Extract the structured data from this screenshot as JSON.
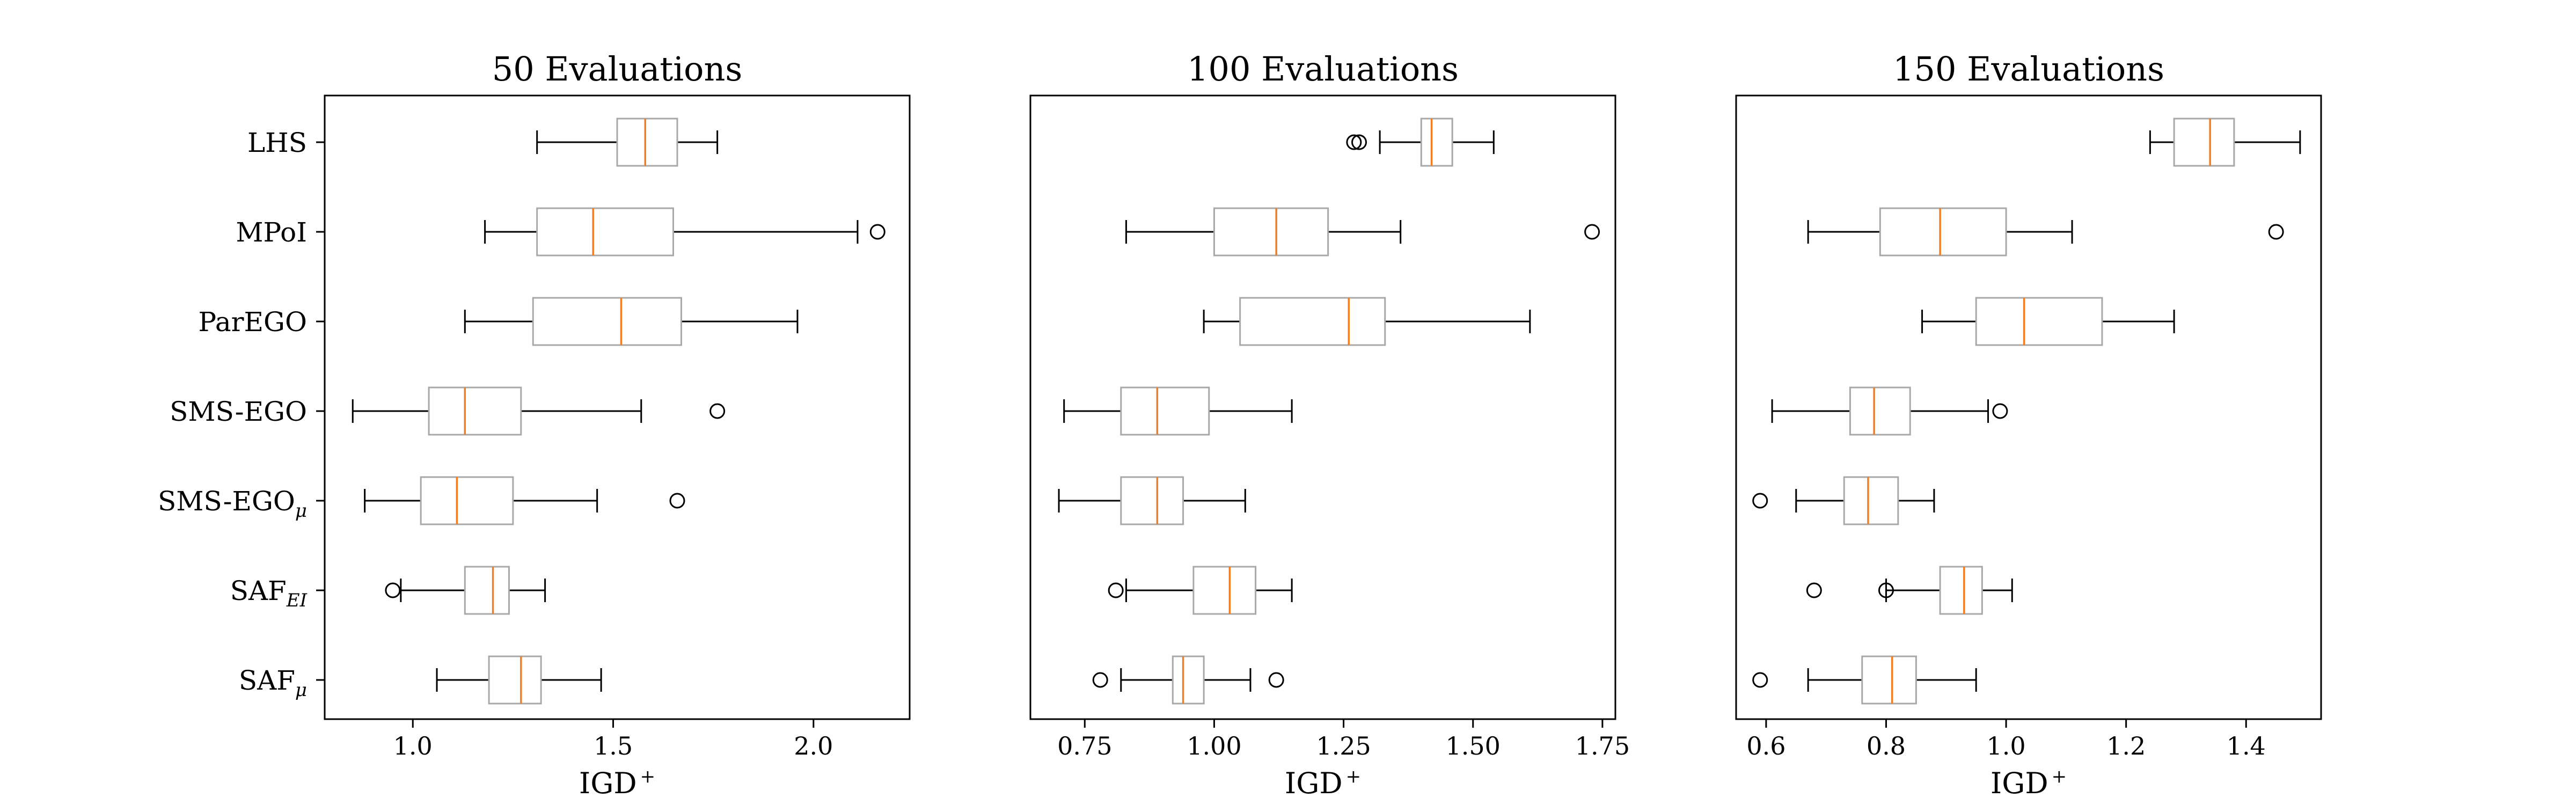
{
  "chart_data": {
    "type": "boxplot",
    "categories": [
      {
        "label": "LHS"
      },
      {
        "label": "MPoI"
      },
      {
        "label": "ParEGO"
      },
      {
        "label": "SMS-EGO"
      },
      {
        "label": "SMS-EGO",
        "sub": "μ"
      },
      {
        "label": "SAF",
        "sub": "EI"
      },
      {
        "label": "SAF",
        "sub": "μ"
      }
    ],
    "colors": {
      "box": "#a8a8a8",
      "median": "#f07f26",
      "whisker": "#000000",
      "frame": "#000000"
    },
    "panels": [
      {
        "title": "50 Evaluations",
        "xlabel": "IGD",
        "xlabel_sup": "+",
        "xlim": [
          0.78,
          2.24
        ],
        "xticks": [
          1.0,
          1.5,
          2.0
        ],
        "xtick_labels": [
          "1.0",
          "1.5",
          "2.0"
        ],
        "boxes": [
          {
            "whislo": 1.31,
            "q1": 1.51,
            "med": 1.58,
            "q3": 1.66,
            "whishi": 1.76,
            "fliers": []
          },
          {
            "whislo": 1.18,
            "q1": 1.31,
            "med": 1.45,
            "q3": 1.65,
            "whishi": 2.11,
            "fliers": [
              2.16
            ]
          },
          {
            "whislo": 1.13,
            "q1": 1.3,
            "med": 1.52,
            "q3": 1.67,
            "whishi": 1.96,
            "fliers": []
          },
          {
            "whislo": 0.85,
            "q1": 1.04,
            "med": 1.13,
            "q3": 1.27,
            "whishi": 1.57,
            "fliers": [
              1.76
            ]
          },
          {
            "whislo": 0.88,
            "q1": 1.02,
            "med": 1.11,
            "q3": 1.25,
            "whishi": 1.46,
            "fliers": [
              1.66
            ]
          },
          {
            "whislo": 0.97,
            "q1": 1.13,
            "med": 1.2,
            "q3": 1.24,
            "whishi": 1.33,
            "fliers": [
              0.95
            ]
          },
          {
            "whislo": 1.06,
            "q1": 1.19,
            "med": 1.27,
            "q3": 1.32,
            "whishi": 1.47,
            "fliers": []
          }
        ]
      },
      {
        "title": "100 Evaluations",
        "xlabel": "IGD",
        "xlabel_sup": "+",
        "xlim": [
          0.645,
          1.775
        ],
        "xticks": [
          0.75,
          1.0,
          1.25,
          1.5,
          1.75
        ],
        "xtick_labels": [
          "0.75",
          "1.00",
          "1.25",
          "1.50",
          "1.75"
        ],
        "boxes": [
          {
            "whislo": 1.32,
            "q1": 1.4,
            "med": 1.42,
            "q3": 1.46,
            "whishi": 1.54,
            "fliers": [
              1.27,
              1.28
            ]
          },
          {
            "whislo": 0.83,
            "q1": 1.0,
            "med": 1.12,
            "q3": 1.22,
            "whishi": 1.36,
            "fliers": [
              1.73
            ]
          },
          {
            "whislo": 0.98,
            "q1": 1.05,
            "med": 1.26,
            "q3": 1.33,
            "whishi": 1.61,
            "fliers": []
          },
          {
            "whislo": 0.71,
            "q1": 0.82,
            "med": 0.89,
            "q3": 0.99,
            "whishi": 1.15,
            "fliers": []
          },
          {
            "whislo": 0.7,
            "q1": 0.82,
            "med": 0.89,
            "q3": 0.94,
            "whishi": 1.06,
            "fliers": []
          },
          {
            "whislo": 0.83,
            "q1": 0.96,
            "med": 1.03,
            "q3": 1.08,
            "whishi": 1.15,
            "fliers": [
              0.81
            ]
          },
          {
            "whislo": 0.82,
            "q1": 0.92,
            "med": 0.94,
            "q3": 0.98,
            "whishi": 1.07,
            "fliers": [
              0.78,
              1.12
            ]
          }
        ]
      },
      {
        "title": "150 Evaluations",
        "xlabel": "IGD",
        "xlabel_sup": "+",
        "xlim": [
          0.55,
          1.525
        ],
        "xticks": [
          0.6,
          0.8,
          1.0,
          1.2,
          1.4
        ],
        "xtick_labels": [
          "0.6",
          "0.8",
          "1.0",
          "1.2",
          "1.4"
        ],
        "boxes": [
          {
            "whislo": 1.24,
            "q1": 1.28,
            "med": 1.34,
            "q3": 1.38,
            "whishi": 1.49,
            "fliers": []
          },
          {
            "whislo": 0.67,
            "q1": 0.79,
            "med": 0.89,
            "q3": 1.0,
            "whishi": 1.11,
            "fliers": [
              1.45
            ]
          },
          {
            "whislo": 0.86,
            "q1": 0.95,
            "med": 1.03,
            "q3": 1.16,
            "whishi": 1.28,
            "fliers": []
          },
          {
            "whislo": 0.61,
            "q1": 0.74,
            "med": 0.78,
            "q3": 0.84,
            "whishi": 0.97,
            "fliers": [
              0.99
            ]
          },
          {
            "whislo": 0.65,
            "q1": 0.73,
            "med": 0.77,
            "q3": 0.82,
            "whishi": 0.88,
            "fliers": [
              0.59
            ]
          },
          {
            "whislo": 0.8,
            "q1": 0.89,
            "med": 0.93,
            "q3": 0.96,
            "whishi": 1.01,
            "fliers": [
              0.68,
              0.8
            ]
          },
          {
            "whislo": 0.67,
            "q1": 0.76,
            "med": 0.81,
            "q3": 0.85,
            "whishi": 0.95,
            "fliers": [
              0.59
            ]
          }
        ]
      }
    ]
  }
}
